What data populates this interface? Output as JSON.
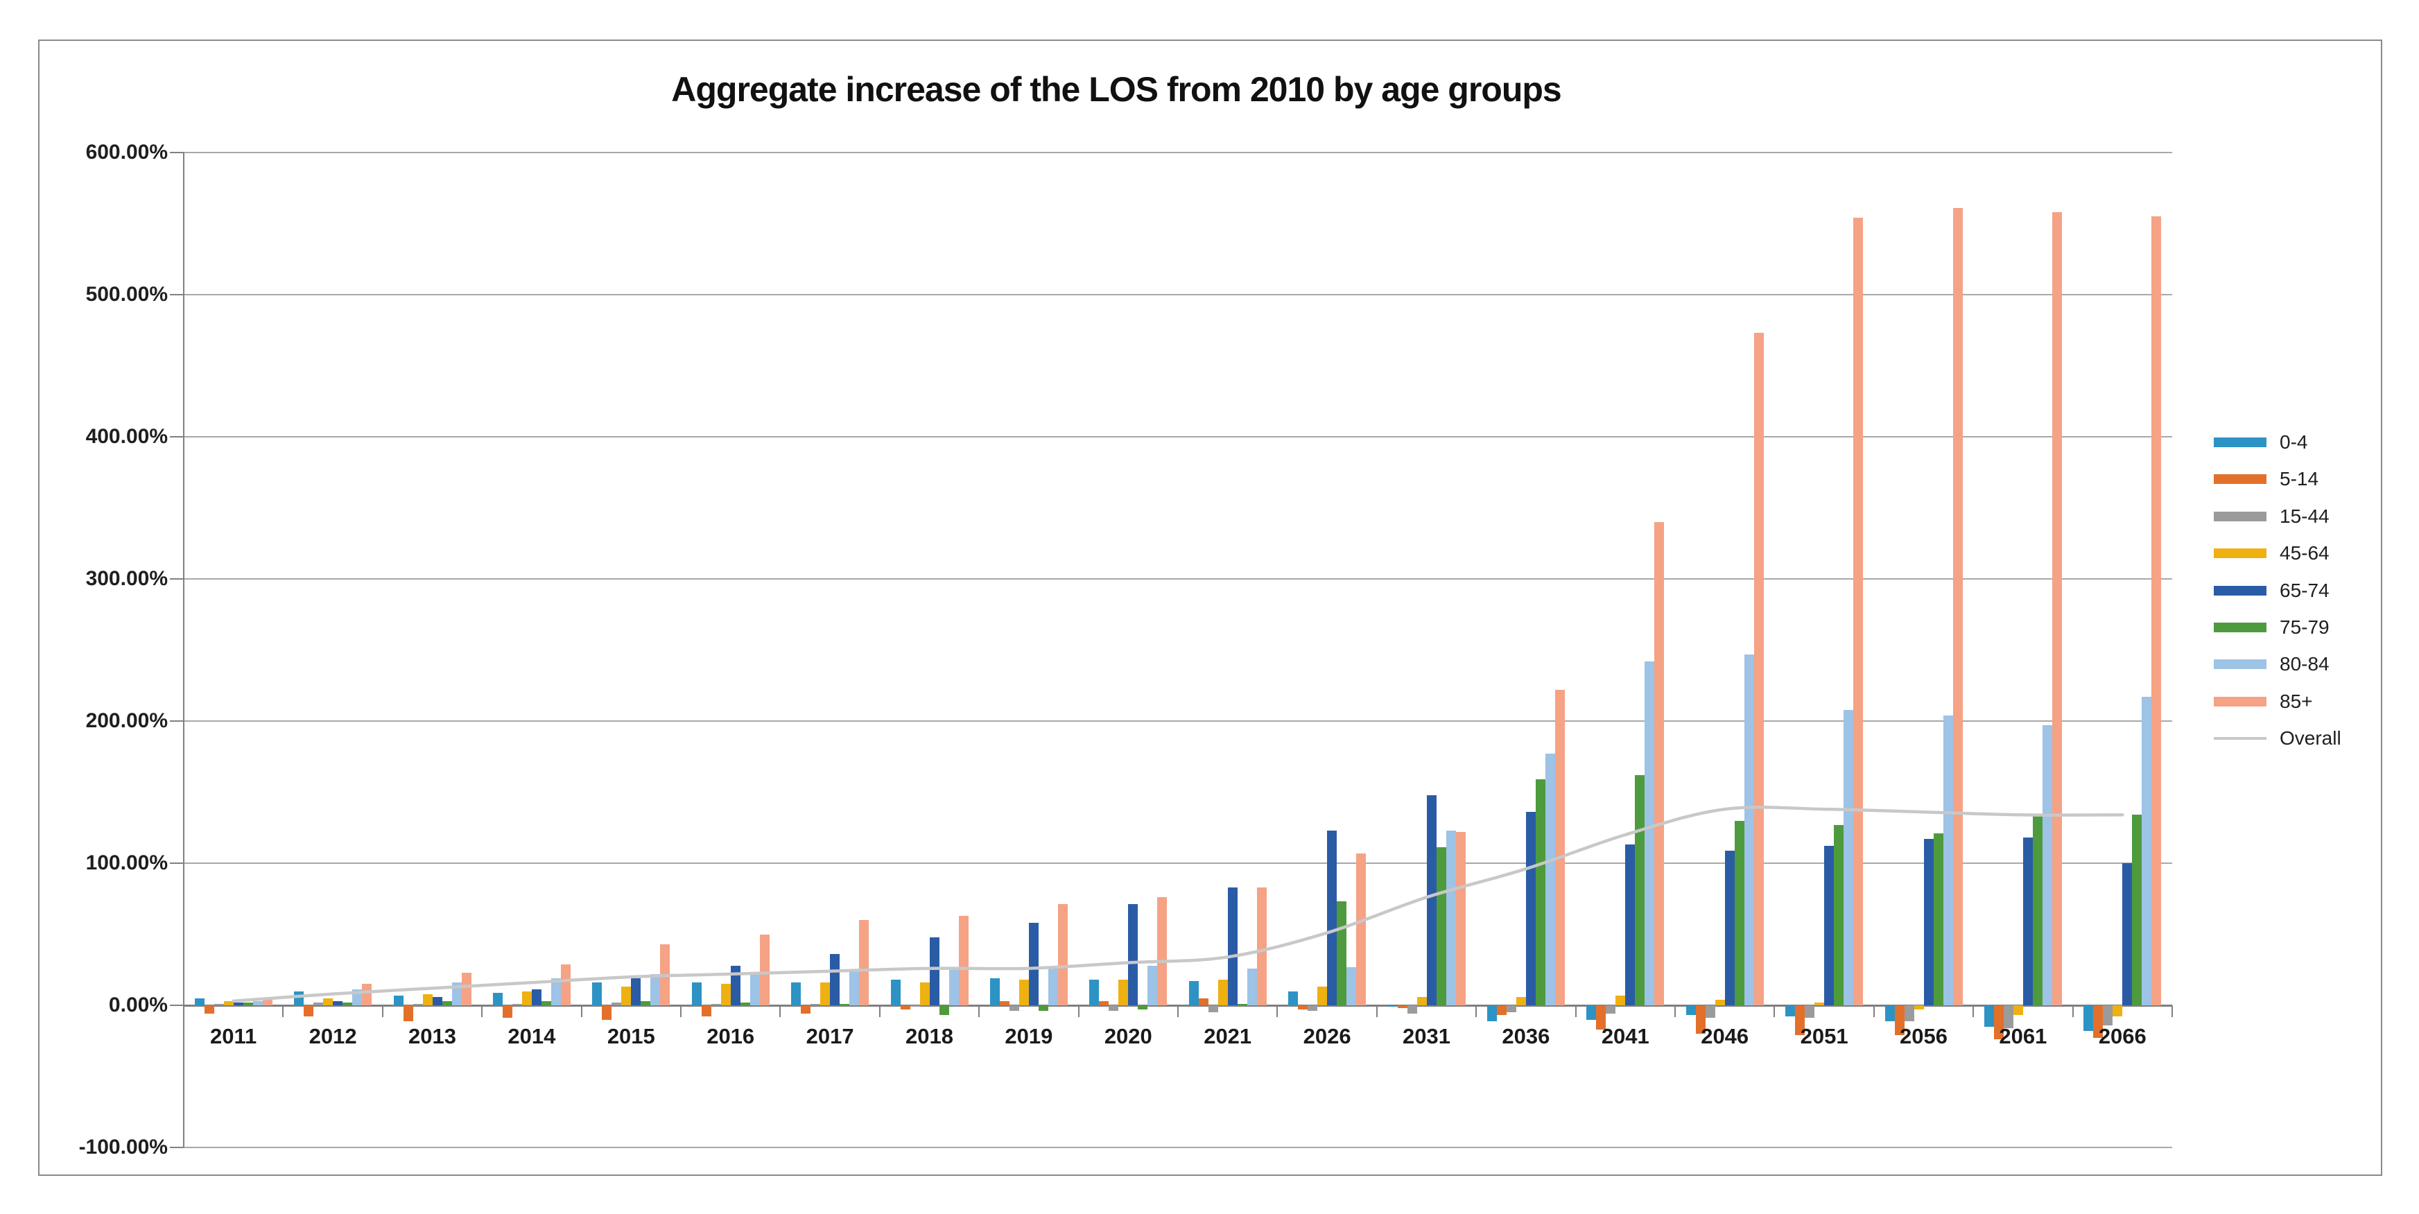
{
  "chart_data": {
    "type": "bar",
    "title": "Aggregate increase of the LOS from 2010 by age groups",
    "xlabel": "",
    "ylabel": "",
    "ylim": [
      -100,
      600
    ],
    "grid": true,
    "legend_position": "right",
    "value_format": "percent",
    "categories": [
      "2011",
      "2012",
      "2013",
      "2014",
      "2015",
      "2016",
      "2017",
      "2018",
      "2019",
      "2020",
      "2021",
      "2026",
      "2031",
      "2036",
      "2041",
      "2046",
      "2051",
      "2056",
      "2061",
      "2066"
    ],
    "y_ticks": [
      {
        "value": 600,
        "label": "600.00%"
      },
      {
        "value": 500,
        "label": "500.00%"
      },
      {
        "value": 400,
        "label": "400.00%"
      },
      {
        "value": 300,
        "label": "300.00%"
      },
      {
        "value": 200,
        "label": "200.00%"
      },
      {
        "value": 100,
        "label": "100.00%"
      },
      {
        "value": 0,
        "label": "0.00%"
      },
      {
        "value": -100,
        "label": "-100.00%"
      }
    ],
    "series": [
      {
        "name": "0-4",
        "color": "#2D93C4",
        "values": [
          5,
          10,
          7,
          9,
          16,
          16,
          16,
          18,
          19,
          18,
          17,
          10,
          -1,
          -11,
          -10,
          -7,
          -8,
          -11,
          -15,
          -18
        ]
      },
      {
        "name": "5-14",
        "color": "#E2702B",
        "values": [
          -6,
          -8,
          -11,
          -9,
          -10,
          -8,
          -6,
          -3,
          3,
          3,
          5,
          -3,
          -2,
          -7,
          -17,
          -20,
          -21,
          -21,
          -24,
          -23
        ]
      },
      {
        "name": "15-44",
        "color": "#9B9B9B",
        "values": [
          1,
          2,
          1,
          1,
          2,
          1,
          1,
          -1,
          -4,
          -4,
          -5,
          -4,
          -6,
          -5,
          -6,
          -9,
          -9,
          -11,
          -16,
          -14
        ]
      },
      {
        "name": "45-64",
        "color": "#EEB111",
        "values": [
          3,
          5,
          8,
          10,
          13,
          15,
          16,
          16,
          18,
          18,
          18,
          13,
          6,
          6,
          7,
          4,
          2,
          -3,
          -7,
          -8
        ]
      },
      {
        "name": "65-74",
        "color": "#2A5CA6",
        "values": [
          2,
          3,
          6,
          11,
          19,
          28,
          36,
          48,
          58,
          71,
          83,
          123,
          148,
          136,
          113,
          109,
          112,
          117,
          118,
          100
        ]
      },
      {
        "name": "75-79",
        "color": "#4E9B3D",
        "values": [
          2,
          2,
          3,
          3,
          3,
          2,
          1,
          -7,
          -4,
          -3,
          1,
          73,
          111,
          159,
          162,
          130,
          127,
          121,
          133,
          134
        ]
      },
      {
        "name": "80-84",
        "color": "#9DC3E6",
        "values": [
          3,
          11,
          16,
          19,
          22,
          22,
          25,
          25,
          27,
          28,
          26,
          27,
          123,
          177,
          242,
          247,
          208,
          204,
          197,
          217
        ]
      },
      {
        "name": "85+",
        "color": "#F5A285",
        "values": [
          4,
          15,
          23,
          29,
          43,
          50,
          60,
          63,
          71,
          76,
          83,
          107,
          122,
          222,
          340,
          473,
          554,
          561,
          558,
          555
        ]
      }
    ],
    "line_series": {
      "name": "Overall",
      "color": "#C8C8C8",
      "values": [
        3,
        8,
        12,
        16,
        20,
        22,
        24,
        26,
        26,
        30,
        34,
        51,
        76,
        96,
        120,
        138,
        138,
        136,
        134,
        134
      ]
    }
  }
}
